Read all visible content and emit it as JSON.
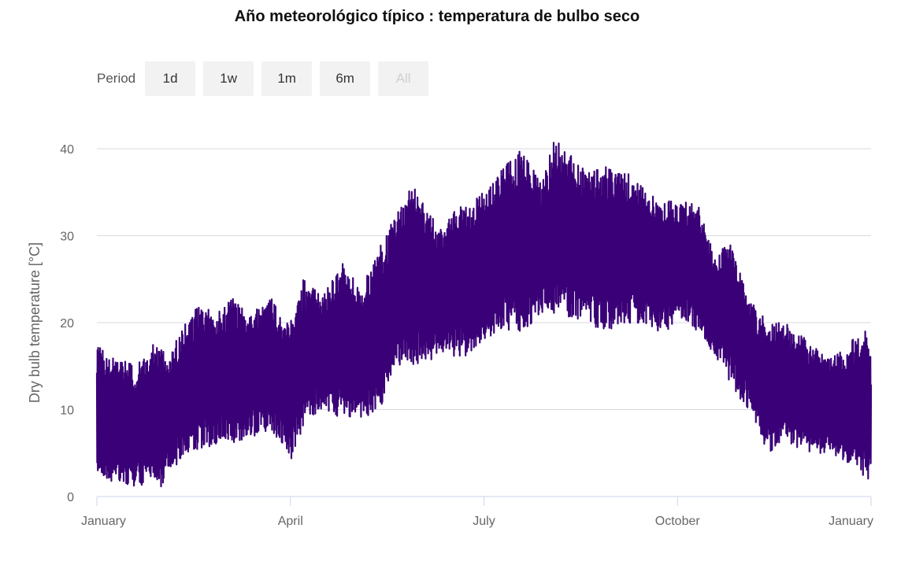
{
  "chart_data": {
    "type": "line",
    "title": "Año meteorológico típico : temperatura de bulbo seco",
    "xlabel": "",
    "ylabel": "Dry bulb temperature [°C]",
    "ylim": [
      0,
      42
    ],
    "yticks": [
      0,
      10,
      20,
      30,
      40
    ],
    "x_tick_labels": [
      "January",
      "April",
      "July",
      "October",
      "January"
    ],
    "x_tick_months": [
      0,
      3,
      6,
      9,
      12
    ],
    "series_color": "#3a0077",
    "grid": true,
    "series": [
      {
        "name": "Dry bulb temperature",
        "x_unit": "month",
        "approx_envelope": {
          "month": [
            0,
            0.2,
            0.3,
            0.6,
            0.9,
            1.0,
            1.1,
            1.3,
            1.6,
            1.8,
            2.1,
            2.4,
            2.7,
            2.9,
            3.0,
            3.2,
            3.5,
            3.8,
            4.1,
            4.4,
            4.6,
            4.9,
            5.3,
            5.7,
            6.0,
            6.3,
            6.6,
            6.9,
            7.1,
            7.5,
            7.9,
            8.3,
            8.7,
            8.9,
            9.0,
            9.3,
            9.6,
            9.8,
            10.1,
            10.4,
            10.7,
            11.0,
            11.3,
            11.6,
            11.9,
            12.0
          ],
          "min": [
            3,
            1.5,
            2,
            1,
            2,
            0,
            3,
            4,
            5,
            6,
            6,
            7,
            7,
            6,
            4,
            8,
            10,
            9,
            9,
            10,
            15,
            15,
            16,
            16,
            18,
            19,
            19,
            21,
            21,
            20,
            19,
            20,
            19,
            19,
            21,
            19,
            16,
            13,
            10,
            5,
            6,
            5,
            5,
            4,
            2,
            2
          ],
          "max": [
            17.5,
            16,
            16,
            15,
            18,
            17,
            16,
            19,
            22.5,
            21,
            23,
            21,
            23,
            21,
            20,
            25,
            23,
            27,
            24,
            29,
            32,
            36,
            31,
            34,
            35,
            38,
            40,
            36,
            41.5,
            38,
            38,
            37,
            34,
            34,
            34,
            34,
            27,
            30,
            23,
            20,
            20,
            18,
            16,
            17,
            20,
            16
          ]
        }
      }
    ]
  },
  "range_selector": {
    "label": "Period",
    "buttons": [
      "1d",
      "1w",
      "1m",
      "6m",
      "All"
    ]
  }
}
